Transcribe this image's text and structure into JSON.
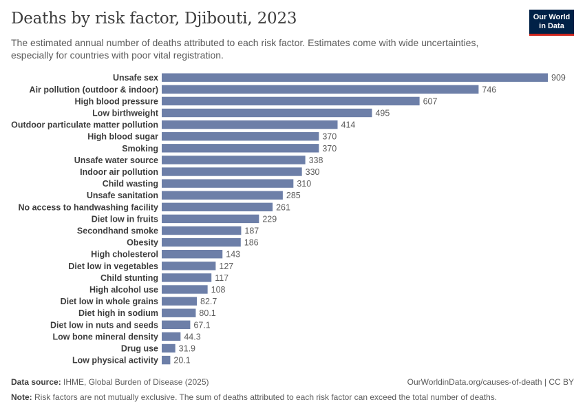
{
  "header": {
    "title": "Deaths by risk factor, Djibouti, 2023",
    "subtitle": "The estimated annual number of deaths attributed to each risk factor. Estimates come with wide uncertainties, especially for countries with poor vital registration."
  },
  "logo": {
    "line1": "Our World",
    "line2": "in Data"
  },
  "footer": {
    "source_label": "Data source:",
    "source_text": "IHME, Global Burden of Disease (2025)",
    "url": "OurWorldinData.org/causes-of-death",
    "license": " | CC BY",
    "note_label": "Note:",
    "note_text": "Risk factors are not mutually exclusive. The sum of deaths attributed to each risk factor can exceed the total number of deaths."
  },
  "colors": {
    "bar": "#6d7fa8",
    "label": "#3d3d3d",
    "value": "#5b5b5b"
  },
  "chart_data": {
    "type": "bar",
    "orientation": "horizontal",
    "title": "Deaths by risk factor, Djibouti, 2023",
    "xlim": [
      0,
      909
    ],
    "categories": [
      "Unsafe sex",
      "Air pollution (outdoor & indoor)",
      "High blood pressure",
      "Low birthweight",
      "Outdoor particulate matter pollution",
      "High blood sugar",
      "Smoking",
      "Unsafe water source",
      "Indoor air pollution",
      "Child wasting",
      "Unsafe sanitation",
      "No access to handwashing facility",
      "Diet low in fruits",
      "Secondhand smoke",
      "Obesity",
      "High cholesterol",
      "Diet low in vegetables",
      "Child stunting",
      "High alcohol use",
      "Diet low in whole grains",
      "Diet high in sodium",
      "Diet low in nuts and seeds",
      "Low bone mineral density",
      "Drug use",
      "Low physical activity"
    ],
    "values": [
      909,
      746,
      607,
      495,
      414,
      370,
      370,
      338,
      330,
      310,
      285,
      261,
      229,
      187,
      186,
      143,
      127,
      117,
      108,
      82.7,
      80.1,
      67.1,
      44.3,
      31.9,
      20.1
    ],
    "value_labels": [
      "909",
      "746",
      "607",
      "495",
      "414",
      "370",
      "370",
      "338",
      "330",
      "310",
      "285",
      "261",
      "229",
      "187",
      "186",
      "143",
      "127",
      "117",
      "108",
      "82.7",
      "80.1",
      "67.1",
      "44.3",
      "31.9",
      "20.1"
    ]
  }
}
